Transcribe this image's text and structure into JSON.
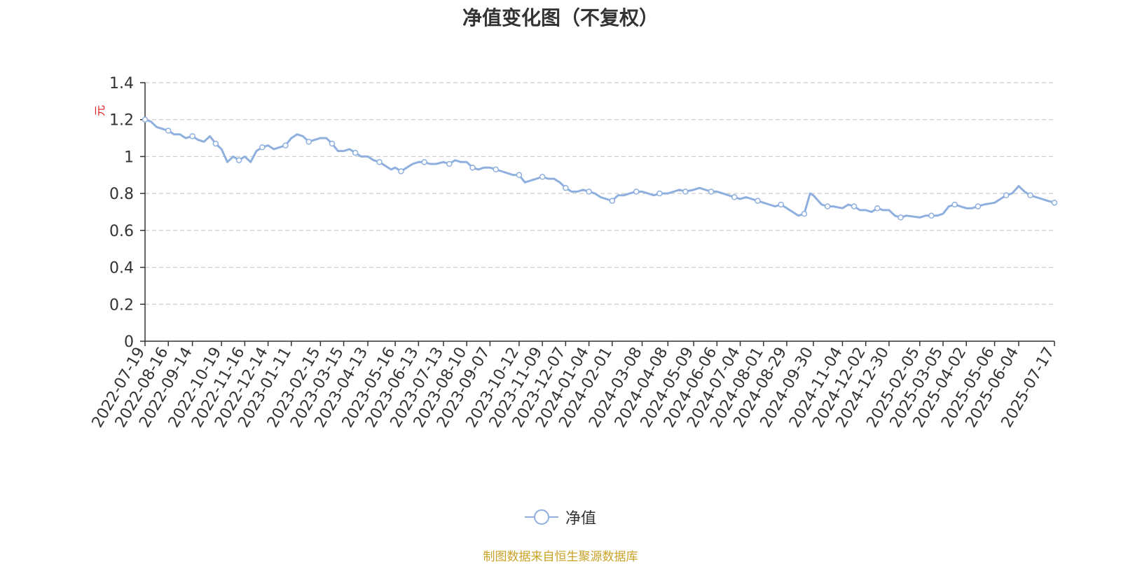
{
  "title": "净值变化图（不复权）",
  "unit_label": "元",
  "legend": "净值",
  "source": "制图数据来自恒生聚源数据库",
  "colors": {
    "line": "#8fb0de",
    "axis": "#333333",
    "grid": "#cccccc",
    "unit": "#e02020",
    "source": "#c9a227"
  },
  "chart_data": {
    "type": "line",
    "title": "净值变化图（不复权）",
    "ylabel": "元",
    "ylim": [
      0,
      1.4
    ],
    "yticks": [
      0,
      0.2,
      0.4,
      0.6,
      0.8,
      1,
      1.2,
      1.4
    ],
    "x_ticks": [
      "2022-07-19",
      "2022-08-16",
      "2022-09-14",
      "2022-10-19",
      "2022-11-16",
      "2022-12-14",
      "2023-01-11",
      "2023-02-15",
      "2023-03-15",
      "2023-04-13",
      "2023-05-16",
      "2023-06-13",
      "2023-07-13",
      "2023-08-10",
      "2023-09-07",
      "2023-10-12",
      "2023-11-09",
      "2023-12-07",
      "2024-01-04",
      "2024-02-01",
      "2024-03-08",
      "2024-04-08",
      "2024-05-09",
      "2024-06-06",
      "2024-07-04",
      "2024-08-01",
      "2024-08-29",
      "2024-09-30",
      "2024-11-04",
      "2024-12-02",
      "2024-12-30",
      "2025-02-05",
      "2025-03-05",
      "2025-04-02",
      "2025-05-06",
      "2025-06-04",
      "2025-07-17"
    ],
    "grid": true,
    "legend_position": "bottom",
    "series": [
      {
        "name": "净值",
        "x": [
          "2022-07-19",
          "2022-07-26",
          "2022-08-02",
          "2022-08-09",
          "2022-08-16",
          "2022-08-23",
          "2022-08-30",
          "2022-09-06",
          "2022-09-14",
          "2022-09-21",
          "2022-09-28",
          "2022-10-05",
          "2022-10-12",
          "2022-10-19",
          "2022-10-26",
          "2022-11-02",
          "2022-11-09",
          "2022-11-16",
          "2022-11-23",
          "2022-11-30",
          "2022-12-07",
          "2022-12-14",
          "2022-12-21",
          "2022-12-28",
          "2023-01-04",
          "2023-01-11",
          "2023-01-18",
          "2023-01-25",
          "2023-02-01",
          "2023-02-08",
          "2023-02-15",
          "2023-02-22",
          "2023-03-01",
          "2023-03-08",
          "2023-03-15",
          "2023-03-22",
          "2023-03-29",
          "2023-04-05",
          "2023-04-13",
          "2023-04-20",
          "2023-04-27",
          "2023-05-04",
          "2023-05-11",
          "2023-05-16",
          "2023-05-23",
          "2023-05-30",
          "2023-06-06",
          "2023-06-13",
          "2023-06-20",
          "2023-06-27",
          "2023-07-04",
          "2023-07-13",
          "2023-07-20",
          "2023-07-27",
          "2023-08-03",
          "2023-08-10",
          "2023-08-17",
          "2023-08-24",
          "2023-08-31",
          "2023-09-07",
          "2023-09-14",
          "2023-09-21",
          "2023-09-28",
          "2023-10-05",
          "2023-10-12",
          "2023-10-19",
          "2023-10-26",
          "2023-11-02",
          "2023-11-09",
          "2023-11-16",
          "2023-11-23",
          "2023-11-30",
          "2023-12-07",
          "2023-12-14",
          "2023-12-21",
          "2023-12-28",
          "2024-01-04",
          "2024-01-11",
          "2024-01-18",
          "2024-01-25",
          "2024-02-01",
          "2024-02-08",
          "2024-02-15",
          "2024-02-22",
          "2024-03-01",
          "2024-03-08",
          "2024-03-15",
          "2024-03-22",
          "2024-03-29",
          "2024-04-08",
          "2024-04-15",
          "2024-04-22",
          "2024-04-29",
          "2024-05-09",
          "2024-05-16",
          "2024-05-23",
          "2024-05-30",
          "2024-06-06",
          "2024-06-13",
          "2024-06-20",
          "2024-06-27",
          "2024-07-04",
          "2024-07-11",
          "2024-07-18",
          "2024-07-25",
          "2024-08-01",
          "2024-08-08",
          "2024-08-15",
          "2024-08-22",
          "2024-08-29",
          "2024-09-05",
          "2024-09-12",
          "2024-09-19",
          "2024-09-26",
          "2024-09-30",
          "2024-10-10",
          "2024-10-17",
          "2024-10-24",
          "2024-11-04",
          "2024-11-11",
          "2024-11-18",
          "2024-11-25",
          "2024-12-02",
          "2024-12-09",
          "2024-12-16",
          "2024-12-23",
          "2024-12-30",
          "2025-01-06",
          "2025-01-13",
          "2025-01-20",
          "2025-02-05",
          "2025-02-12",
          "2025-02-19",
          "2025-02-26",
          "2025-03-05",
          "2025-03-12",
          "2025-03-19",
          "2025-03-26",
          "2025-04-02",
          "2025-04-09",
          "2025-04-16",
          "2025-04-23",
          "2025-05-06",
          "2025-05-13",
          "2025-05-20",
          "2025-05-27",
          "2025-06-04",
          "2025-06-11",
          "2025-06-18",
          "2025-06-25",
          "2025-07-02",
          "2025-07-09",
          "2025-07-17"
        ],
        "y": [
          1.2,
          1.19,
          1.16,
          1.15,
          1.14,
          1.12,
          1.12,
          1.1,
          1.11,
          1.09,
          1.08,
          1.11,
          1.07,
          1.04,
          0.97,
          1.0,
          0.98,
          1.0,
          0.97,
          1.03,
          1.05,
          1.06,
          1.04,
          1.05,
          1.06,
          1.1,
          1.12,
          1.11,
          1.08,
          1.09,
          1.1,
          1.1,
          1.07,
          1.03,
          1.03,
          1.04,
          1.02,
          1.0,
          1.0,
          0.98,
          0.97,
          0.95,
          0.93,
          0.94,
          0.92,
          0.94,
          0.96,
          0.97,
          0.97,
          0.96,
          0.96,
          0.97,
          0.96,
          0.98,
          0.97,
          0.97,
          0.94,
          0.93,
          0.94,
          0.94,
          0.93,
          0.92,
          0.91,
          0.9,
          0.9,
          0.86,
          0.87,
          0.88,
          0.89,
          0.88,
          0.88,
          0.86,
          0.83,
          0.81,
          0.81,
          0.82,
          0.81,
          0.8,
          0.78,
          0.77,
          0.76,
          0.79,
          0.79,
          0.8,
          0.81,
          0.81,
          0.8,
          0.79,
          0.8,
          0.8,
          0.81,
          0.82,
          0.81,
          0.82,
          0.83,
          0.82,
          0.81,
          0.81,
          0.8,
          0.79,
          0.78,
          0.77,
          0.78,
          0.77,
          0.76,
          0.75,
          0.74,
          0.73,
          0.74,
          0.72,
          0.7,
          0.68,
          0.69,
          0.8,
          0.79,
          0.74,
          0.73,
          0.73,
          0.72,
          0.74,
          0.73,
          0.71,
          0.71,
          0.7,
          0.72,
          0.71,
          0.71,
          0.68,
          0.67,
          0.68,
          0.67,
          0.68,
          0.68,
          0.68,
          0.69,
          0.73,
          0.74,
          0.73,
          0.72,
          0.72,
          0.73,
          0.74,
          0.75,
          0.77,
          0.79,
          0.8,
          0.84,
          0.81,
          0.79,
          0.78,
          0.77,
          0.76,
          0.75
        ]
      }
    ]
  }
}
